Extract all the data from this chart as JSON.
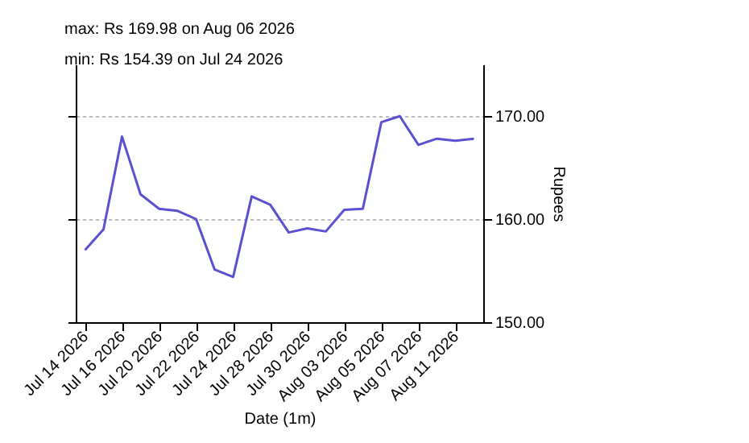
{
  "chart_data": {
    "type": "line",
    "annotations": [
      "max: Rs 169.98 on Aug 06 2026",
      "min: Rs 154.39 on Jul 24 2026"
    ],
    "xlabel": "Date (1m)",
    "ylabel": "Rupees",
    "categories": [
      "Jul 14 2026",
      null,
      "Jul 16 2026",
      null,
      "Jul 20 2026",
      null,
      "Jul 22 2026",
      null,
      "Jul 24 2026",
      null,
      "Jul 28 2026",
      null,
      "Jul 30 2026",
      null,
      "Aug 03 2026",
      null,
      "Aug 05 2026",
      null,
      "Aug 07 2026",
      null,
      "Aug 11 2026",
      null
    ],
    "series": [
      {
        "color": "#5a50d0",
        "values": [
          157.0,
          159.0,
          168.0,
          162.4,
          161.0,
          160.8,
          160.0,
          155.1,
          154.39,
          162.2,
          161.4,
          158.7,
          159.1,
          158.8,
          160.9,
          161.0,
          169.4,
          169.98,
          167.2,
          167.8,
          167.6,
          167.8
        ]
      }
    ],
    "ylim": [
      150,
      175
    ],
    "yticks": [
      {
        "value": 150,
        "label": "150.00"
      },
      {
        "value": 160,
        "label": "160.00"
      },
      {
        "value": 170,
        "label": "170.00"
      }
    ],
    "grid": "y",
    "legend": false,
    "marker": "none",
    "line_style": "solid"
  }
}
